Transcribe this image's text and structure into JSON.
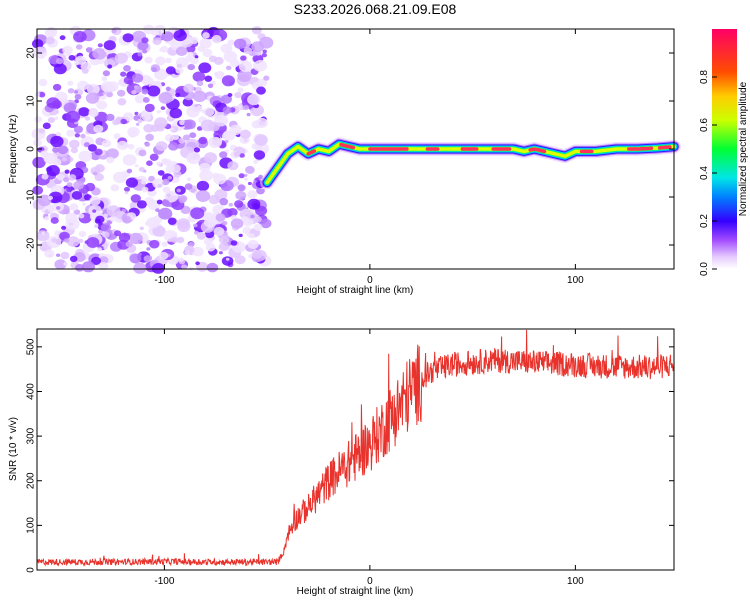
{
  "title": "S233.2026.068.21.09.E08",
  "chart_data": [
    {
      "type": "heatmap",
      "name": "spectrogram",
      "xlabel": "Height of straight line (km)",
      "ylabel": "Frequency (Hz)",
      "xlim": [
        -162,
        148
      ],
      "ylim": [
        -25,
        25
      ],
      "xticks": [
        -100,
        0,
        100
      ],
      "xtick_labels": [
        "-100",
        "0",
        "100"
      ],
      "yticks": [
        -20,
        -10,
        0,
        10,
        20
      ],
      "ytick_labels": [
        "-20",
        "-10",
        "0",
        "10",
        "20"
      ],
      "noise_region_x": [
        -162,
        -50
      ],
      "ridge": {
        "x": [
          -50,
          -45,
          -40,
          -35,
          -30,
          -25,
          -20,
          -15,
          -10,
          -5,
          0,
          10,
          20,
          30,
          40,
          50,
          60,
          70,
          75,
          80,
          90,
          95,
          100,
          110,
          120,
          130,
          140,
          148
        ],
        "freq": [
          -7,
          -4,
          -1,
          0.5,
          -1,
          0,
          -0.5,
          1,
          0.5,
          0,
          0,
          0,
          0,
          0,
          0,
          0,
          0,
          0,
          -0.5,
          0,
          -1,
          -1.5,
          -0.5,
          -0.5,
          0,
          0,
          0.2,
          0.5
        ]
      },
      "colorbar": {
        "label": "Normalized spectral amplitude",
        "range": [
          0,
          1
        ],
        "ticks": [
          0.0,
          0.2,
          0.4,
          0.6,
          0.8
        ],
        "tick_labels": [
          "0.0",
          "0.2",
          "0.4",
          "0.6",
          "0.8"
        ]
      }
    },
    {
      "type": "line",
      "name": "snr",
      "xlabel": "Height of straight line (km)",
      "ylabel": "SNR (10 * v/v)",
      "xlim": [
        -162,
        148
      ],
      "ylim": [
        0,
        540
      ],
      "xticks": [
        -100,
        0,
        100
      ],
      "xtick_labels": [
        "-100",
        "0",
        "100"
      ],
      "yticks": [
        0,
        100,
        200,
        300,
        400,
        500
      ],
      "ytick_labels": [
        "0",
        "100",
        "200",
        "300",
        "400",
        "500"
      ],
      "color": "#e8322c",
      "series": [
        {
          "name": "SNR",
          "x": [
            -162,
            -140,
            -120,
            -100,
            -80,
            -60,
            -45,
            -42,
            -40,
            -35,
            -30,
            -25,
            -20,
            -15,
            -10,
            -5,
            0,
            5,
            10,
            15,
            20,
            25,
            30,
            40,
            50,
            60,
            80,
            100,
            120,
            140,
            148
          ],
          "y": [
            18,
            18,
            18,
            19,
            18,
            18,
            18,
            40,
            80,
            120,
            140,
            170,
            200,
            220,
            240,
            260,
            280,
            310,
            340,
            370,
            400,
            425,
            445,
            460,
            465,
            470,
            465,
            460,
            455,
            455,
            460
          ]
        }
      ]
    }
  ]
}
